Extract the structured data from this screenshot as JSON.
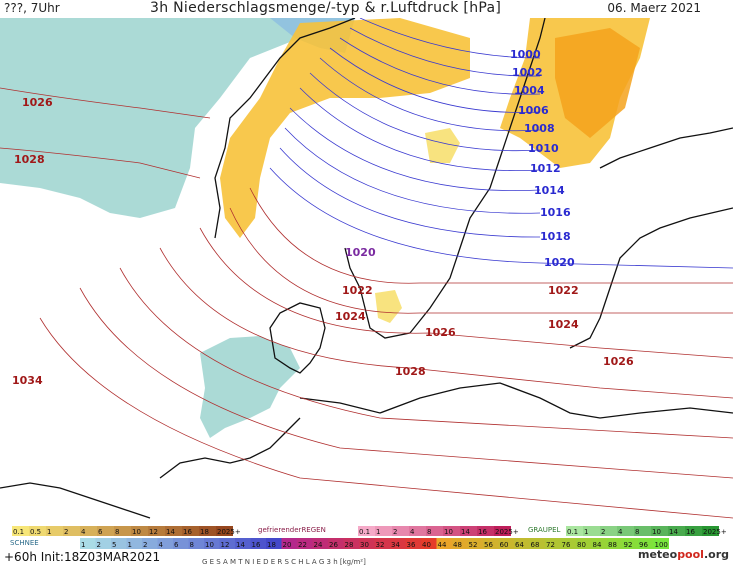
{
  "header": {
    "left": "???, 7Uhr",
    "title": "3h Niederschlagsmenge/-typ & r.Luftdruck [hPa]",
    "date": "06. Maerz 2021"
  },
  "isobars": {
    "blue": [
      "1000",
      "1002",
      "1004",
      "1006",
      "1008",
      "1010",
      "1012",
      "1014",
      "1016",
      "1018",
      "1020"
    ],
    "purple": [
      "1020"
    ],
    "red": [
      "1022",
      "1022",
      "1024",
      "1024",
      "1026",
      "1026",
      "1026",
      "1028",
      "1028",
      "1034"
    ]
  },
  "legend": {
    "snow_label": "SCHNEE",
    "freezing_label": "gefrierenderREGEN",
    "graupel_label": "GRAUPEL",
    "total_label": "G E S A M T N I E D E R S C H L A G   3 h   [kg/m²]",
    "rain_scale": [
      "0.1",
      "0.5",
      "1",
      "2",
      "4",
      "6",
      "8",
      "10",
      "12",
      "14",
      "16",
      "18",
      "2025+"
    ],
    "freezing_scale": [
      "0.1",
      "1",
      "2",
      "4",
      "8",
      "10",
      "14",
      "16",
      "2025+"
    ],
    "graupel_scale": [
      "0.1",
      "1",
      "2",
      "4",
      "8",
      "10",
      "14",
      "16",
      "2025+"
    ],
    "total_scale": [
      "1",
      "2",
      "5",
      "1",
      "2",
      "4",
      "6",
      "8",
      "10",
      "12",
      "14",
      "16",
      "18",
      "20",
      "22",
      "24",
      "26",
      "28",
      "30",
      "32",
      "34",
      "36",
      "40",
      "44",
      "48",
      "52",
      "56",
      "60",
      "64",
      "68",
      "72",
      "76",
      "80",
      "84",
      "88",
      "92",
      "96",
      "100"
    ],
    "colors": {
      "rain": "#f7c23a",
      "snow": "#a6d8d4",
      "freezing": "#e34d7f",
      "graupel": "#6ac26a"
    }
  },
  "footer": {
    "init": "+60h  Init:18Z03MAR2021",
    "logo_main": "meteo",
    "logo_accent": "pool",
    "logo_tld": ".org"
  }
}
